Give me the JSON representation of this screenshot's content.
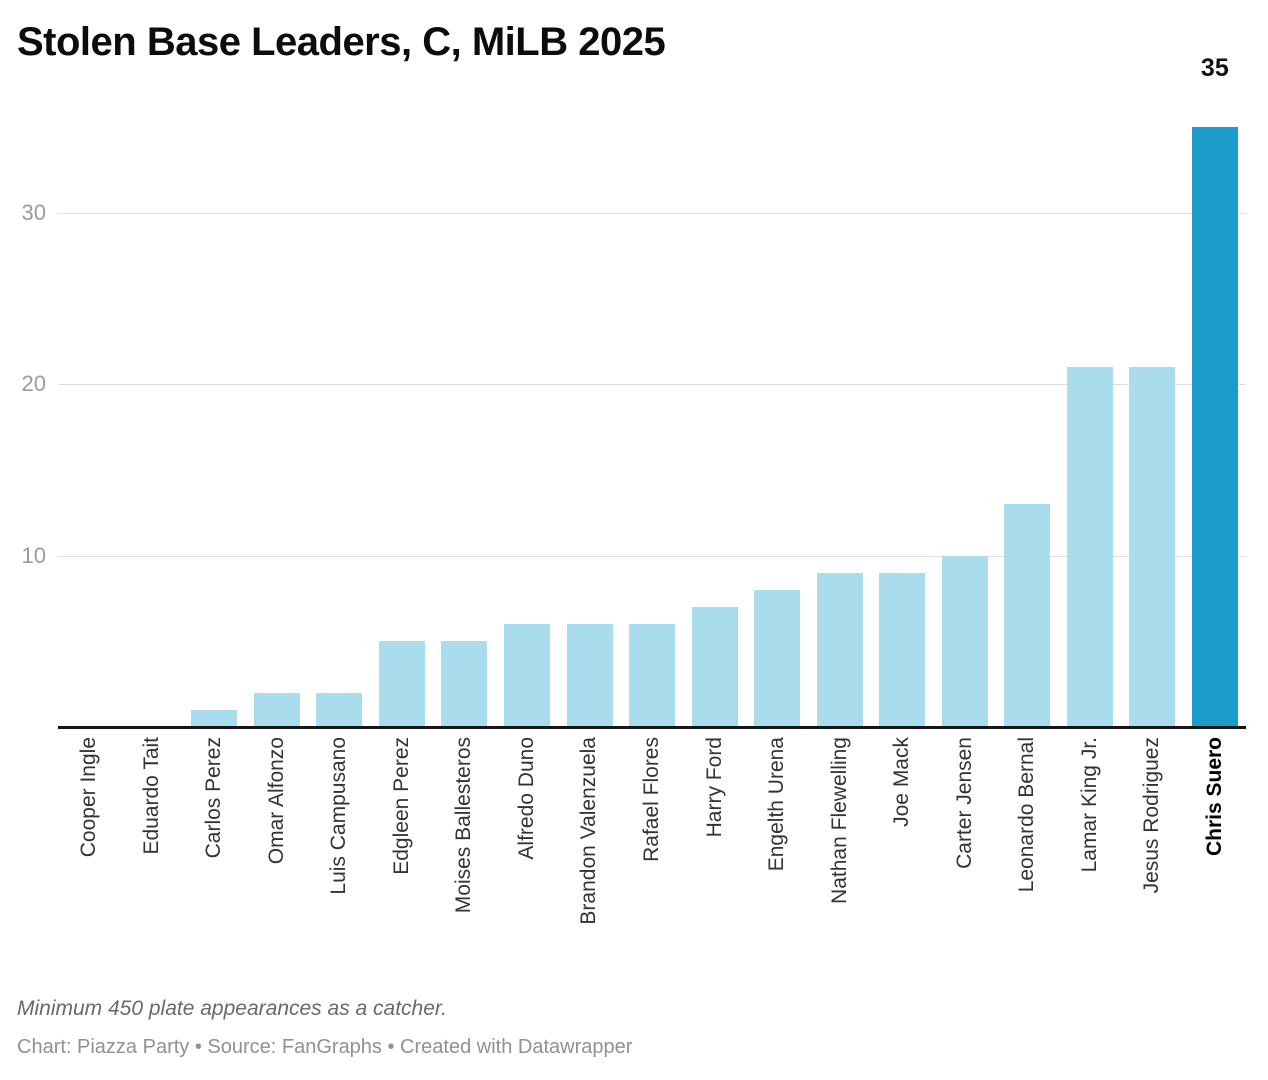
{
  "chart_data": {
    "type": "bar",
    "title": "Stolen Base Leaders, C, MiLB 2025",
    "categories": [
      "Cooper Ingle",
      "Eduardo Tait",
      "Carlos Perez",
      "Omar Alfonzo",
      "Luis Campusano",
      "Edgleen Perez",
      "Moises Ballesteros",
      "Alfredo Duno",
      "Brandon Valenzuela",
      "Rafael Flores",
      "Harry Ford",
      "Engelth Urena",
      "Nathan Flewelling",
      "Joe Mack",
      "Carter Jensen",
      "Leonardo Bernal",
      "Lamar King Jr.",
      "Jesus Rodriguez",
      "Chris Suero"
    ],
    "values": [
      0,
      0,
      1,
      2,
      2,
      5,
      5,
      6,
      6,
      6,
      7,
      8,
      9,
      9,
      10,
      13,
      21,
      21,
      35
    ],
    "highlight_index": 18,
    "highlight_category": "Chris Suero",
    "highlight_value_label": "35",
    "xlabel": "",
    "ylabel": "",
    "yticks": [
      10,
      20,
      30
    ],
    "ylim": [
      0,
      37.2
    ],
    "grid": "horizontal",
    "legend_position": "none",
    "bar_color": "#a9dcec",
    "highlight_color": "#1b9cca"
  },
  "footer": {
    "note": "Minimum 450 plate appearances as a catcher.",
    "byline": "Chart: Piazza Party • Source: FanGraphs • Created with Datawrapper"
  }
}
